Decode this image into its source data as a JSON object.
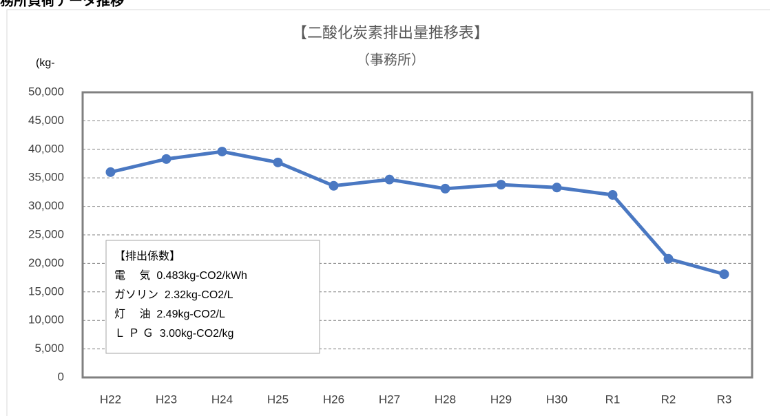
{
  "page_heading": "務所負荷データ推移",
  "chart_data": {
    "type": "line",
    "title": "【二酸化炭素排出量推移表】",
    "subtitle": "（事務所）",
    "y_axis_label": "(kg-",
    "categories": [
      "H22",
      "H23",
      "H24",
      "H25",
      "H26",
      "H27",
      "H28",
      "H29",
      "H30",
      "R1",
      "R2",
      "R3"
    ],
    "series": [
      {
        "name": "CO2",
        "color": "#4a78c2",
        "values": [
          36000,
          38300,
          39600,
          37700,
          33600,
          34700,
          33100,
          33800,
          33300,
          32000,
          20800,
          18100
        ]
      }
    ],
    "ylim": [
      0,
      50000
    ],
    "yticks": [
      0,
      {
        "value": 5000,
        "label": "5,000"
      },
      {
        "value": 10000,
        "label": "10,000"
      },
      {
        "value": 15000,
        "label": "15,000"
      },
      {
        "value": 20000,
        "label": "20,000"
      },
      {
        "value": 25000,
        "label": "25,000"
      },
      {
        "value": 30000,
        "label": "30,000"
      },
      {
        "value": 35000,
        "label": "35,000"
      },
      {
        "value": 40000,
        "label": "40,000"
      },
      {
        "value": 45000,
        "label": "45,000"
      },
      {
        "value": 50000,
        "label": "50,000"
      }
    ],
    "grid": true,
    "annotation": [
      "【排出係数】",
      "電　 気  0.483kg-CO2/kWh",
      "ガソリン  2.32kg-CO2/L",
      "灯　 油  2.49kg-CO2/L",
      "Ｌ Ｐ Ｇ  3.00kg-CO2/kg"
    ]
  }
}
